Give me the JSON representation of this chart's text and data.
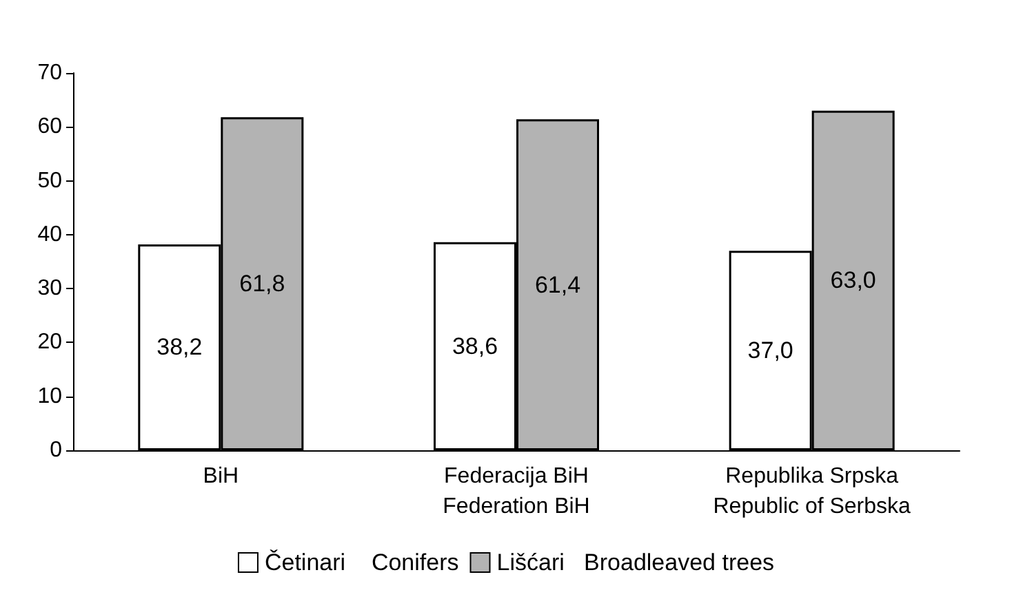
{
  "chart_data": {
    "type": "bar",
    "categories": [
      "BiH",
      "Federacija BiH\nFederation BiH",
      "Republika Srpska\nRepublic of Serbska"
    ],
    "series": [
      {
        "name": "Četinari    Conifers",
        "color": "#ffffff",
        "values": [
          38.2,
          38.6,
          37.0
        ],
        "value_labels": [
          "38,2",
          "38,6",
          "37,0"
        ]
      },
      {
        "name": "Lišćari   Broadleaved trees",
        "color": "#b3b3b3",
        "values": [
          61.8,
          61.4,
          63.0
        ],
        "value_labels": [
          "61,8",
          "61,4",
          "63,0"
        ]
      }
    ],
    "ylim": [
      0,
      70
    ],
    "yticks": [
      0,
      10,
      20,
      30,
      40,
      50,
      60,
      70
    ],
    "grid": false,
    "legend": "bottom"
  }
}
